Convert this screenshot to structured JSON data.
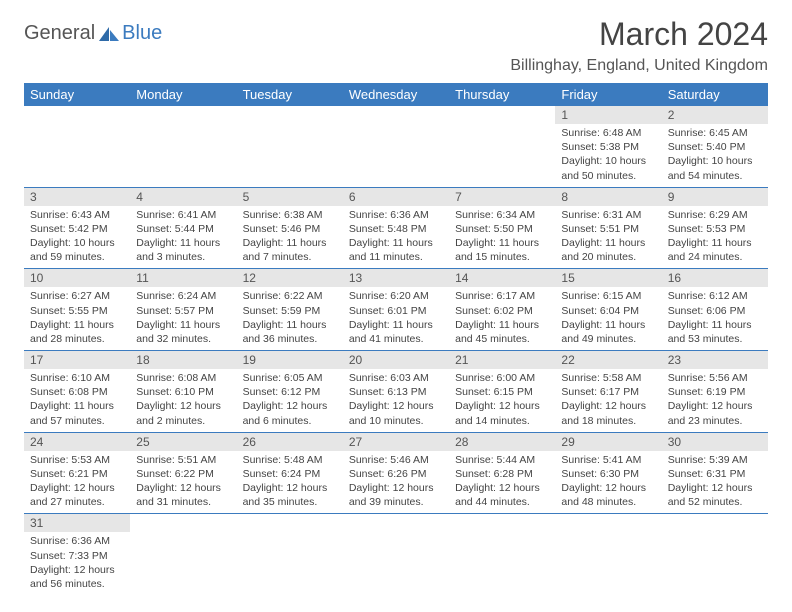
{
  "logo": {
    "part1": "General",
    "part2": "Blue"
  },
  "title": "March 2024",
  "location": "Billinghay, England, United Kingdom",
  "header_bg": "#3b7bbf",
  "weekdays": [
    "Sunday",
    "Monday",
    "Tuesday",
    "Wednesday",
    "Thursday",
    "Friday",
    "Saturday"
  ],
  "first_day_index": 5,
  "days": [
    {
      "n": 1,
      "sr": "6:48 AM",
      "ss": "5:38 PM",
      "dl": "10 hours and 50 minutes."
    },
    {
      "n": 2,
      "sr": "6:45 AM",
      "ss": "5:40 PM",
      "dl": "10 hours and 54 minutes."
    },
    {
      "n": 3,
      "sr": "6:43 AM",
      "ss": "5:42 PM",
      "dl": "10 hours and 59 minutes."
    },
    {
      "n": 4,
      "sr": "6:41 AM",
      "ss": "5:44 PM",
      "dl": "11 hours and 3 minutes."
    },
    {
      "n": 5,
      "sr": "6:38 AM",
      "ss": "5:46 PM",
      "dl": "11 hours and 7 minutes."
    },
    {
      "n": 6,
      "sr": "6:36 AM",
      "ss": "5:48 PM",
      "dl": "11 hours and 11 minutes."
    },
    {
      "n": 7,
      "sr": "6:34 AM",
      "ss": "5:50 PM",
      "dl": "11 hours and 15 minutes."
    },
    {
      "n": 8,
      "sr": "6:31 AM",
      "ss": "5:51 PM",
      "dl": "11 hours and 20 minutes."
    },
    {
      "n": 9,
      "sr": "6:29 AM",
      "ss": "5:53 PM",
      "dl": "11 hours and 24 minutes."
    },
    {
      "n": 10,
      "sr": "6:27 AM",
      "ss": "5:55 PM",
      "dl": "11 hours and 28 minutes."
    },
    {
      "n": 11,
      "sr": "6:24 AM",
      "ss": "5:57 PM",
      "dl": "11 hours and 32 minutes."
    },
    {
      "n": 12,
      "sr": "6:22 AM",
      "ss": "5:59 PM",
      "dl": "11 hours and 36 minutes."
    },
    {
      "n": 13,
      "sr": "6:20 AM",
      "ss": "6:01 PM",
      "dl": "11 hours and 41 minutes."
    },
    {
      "n": 14,
      "sr": "6:17 AM",
      "ss": "6:02 PM",
      "dl": "11 hours and 45 minutes."
    },
    {
      "n": 15,
      "sr": "6:15 AM",
      "ss": "6:04 PM",
      "dl": "11 hours and 49 minutes."
    },
    {
      "n": 16,
      "sr": "6:12 AM",
      "ss": "6:06 PM",
      "dl": "11 hours and 53 minutes."
    },
    {
      "n": 17,
      "sr": "6:10 AM",
      "ss": "6:08 PM",
      "dl": "11 hours and 57 minutes."
    },
    {
      "n": 18,
      "sr": "6:08 AM",
      "ss": "6:10 PM",
      "dl": "12 hours and 2 minutes."
    },
    {
      "n": 19,
      "sr": "6:05 AM",
      "ss": "6:12 PM",
      "dl": "12 hours and 6 minutes."
    },
    {
      "n": 20,
      "sr": "6:03 AM",
      "ss": "6:13 PM",
      "dl": "12 hours and 10 minutes."
    },
    {
      "n": 21,
      "sr": "6:00 AM",
      "ss": "6:15 PM",
      "dl": "12 hours and 14 minutes."
    },
    {
      "n": 22,
      "sr": "5:58 AM",
      "ss": "6:17 PM",
      "dl": "12 hours and 18 minutes."
    },
    {
      "n": 23,
      "sr": "5:56 AM",
      "ss": "6:19 PM",
      "dl": "12 hours and 23 minutes."
    },
    {
      "n": 24,
      "sr": "5:53 AM",
      "ss": "6:21 PM",
      "dl": "12 hours and 27 minutes."
    },
    {
      "n": 25,
      "sr": "5:51 AM",
      "ss": "6:22 PM",
      "dl": "12 hours and 31 minutes."
    },
    {
      "n": 26,
      "sr": "5:48 AM",
      "ss": "6:24 PM",
      "dl": "12 hours and 35 minutes."
    },
    {
      "n": 27,
      "sr": "5:46 AM",
      "ss": "6:26 PM",
      "dl": "12 hours and 39 minutes."
    },
    {
      "n": 28,
      "sr": "5:44 AM",
      "ss": "6:28 PM",
      "dl": "12 hours and 44 minutes."
    },
    {
      "n": 29,
      "sr": "5:41 AM",
      "ss": "6:30 PM",
      "dl": "12 hours and 48 minutes."
    },
    {
      "n": 30,
      "sr": "5:39 AM",
      "ss": "6:31 PM",
      "dl": "12 hours and 52 minutes."
    },
    {
      "n": 31,
      "sr": "6:36 AM",
      "ss": "7:33 PM",
      "dl": "12 hours and 56 minutes."
    }
  ],
  "labels": {
    "sunrise": "Sunrise:",
    "sunset": "Sunset:",
    "daylight": "Daylight:"
  }
}
